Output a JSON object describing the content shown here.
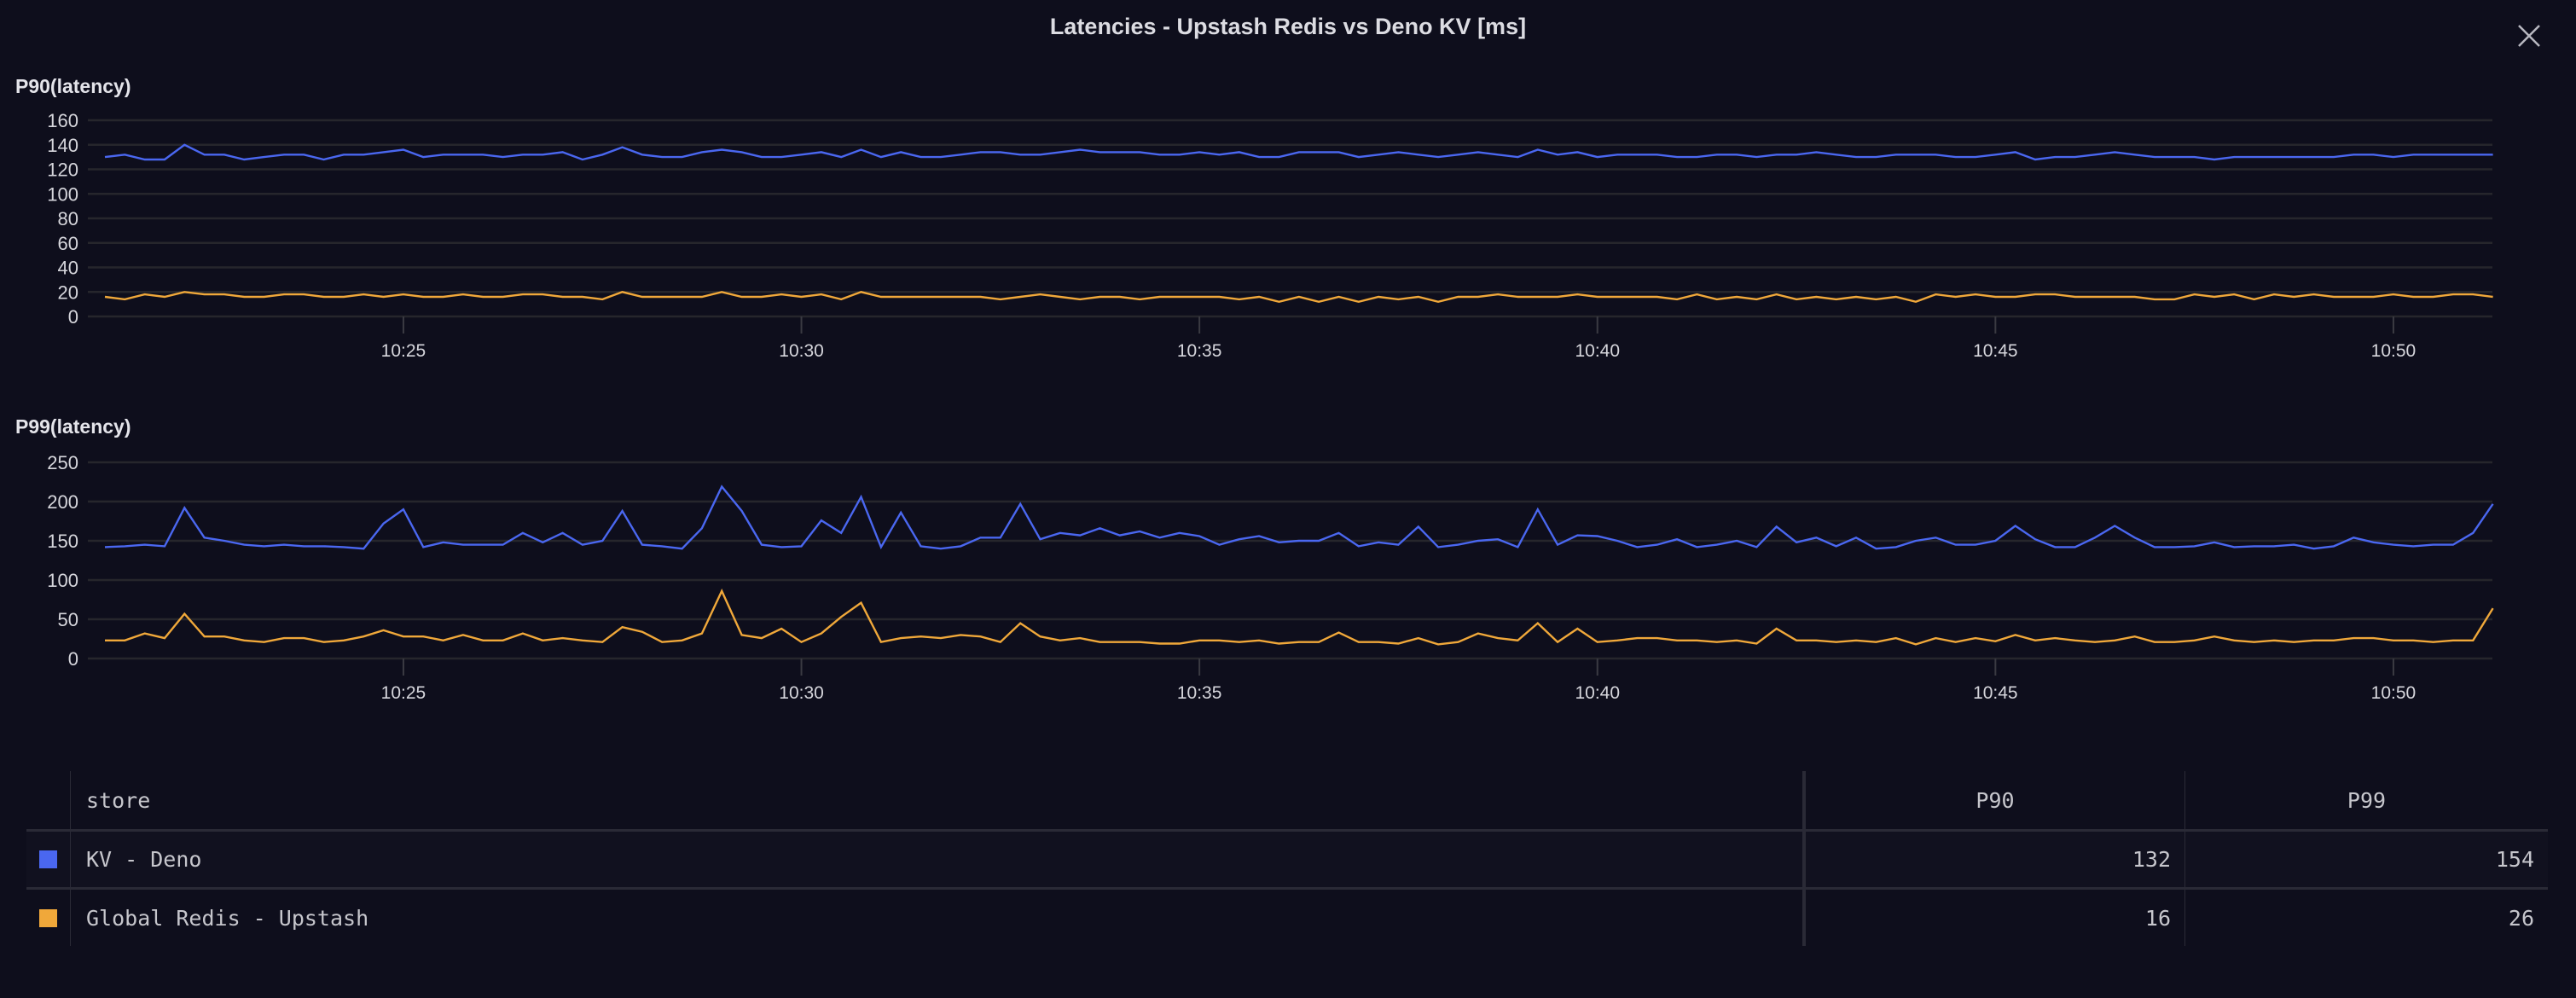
{
  "title": "Latencies - Upstash Redis vs Deno KV [ms]",
  "close_icon": "close-icon",
  "colors": {
    "kv_deno": "#4a67f0",
    "global_redis_upstash": "#f0a83a",
    "background": "#0e0e1c",
    "grid": "#26262c"
  },
  "chart_data": [
    {
      "type": "line",
      "title": "P90(latency)",
      "ylim": [
        0,
        160
      ],
      "yticks": [
        "0",
        "20",
        "40",
        "60",
        "80",
        "100",
        "120",
        "140",
        "160"
      ],
      "xticks": [
        "10:25",
        "10:30",
        "10:35",
        "10:40",
        "10:45",
        "10:50"
      ],
      "x_start": "10:21:15",
      "x_end": "10:51:15",
      "x_step_seconds": 15,
      "grid": true,
      "series": [
        {
          "name": "KV - Deno",
          "color": "#4a67f0",
          "values": [
            130,
            132,
            128,
            128,
            140,
            132,
            132,
            128,
            130,
            132,
            132,
            128,
            132,
            132,
            134,
            136,
            130,
            132,
            132,
            132,
            130,
            132,
            132,
            134,
            128,
            132,
            138,
            132,
            130,
            130,
            134,
            136,
            134,
            130,
            130,
            132,
            134,
            130,
            136,
            130,
            134,
            130,
            130,
            132,
            134,
            134,
            132,
            132,
            134,
            136,
            134,
            134,
            134,
            132,
            132,
            134,
            132,
            134,
            130,
            130,
            134,
            134,
            134,
            130,
            132,
            134,
            132,
            130,
            132,
            134,
            132,
            130,
            136,
            132,
            134,
            130,
            132,
            132,
            132,
            130,
            130,
            132,
            132,
            130,
            132,
            132,
            134,
            132,
            130,
            130,
            132,
            132,
            132,
            130,
            130,
            132,
            134,
            128,
            130,
            130,
            132,
            134,
            132,
            130,
            130,
            130,
            128,
            130,
            130,
            130,
            130,
            130,
            130,
            132,
            132,
            130,
            132,
            132,
            132,
            132,
            132
          ]
        },
        {
          "name": "Global Redis - Upstash",
          "color": "#f0a83a",
          "values": [
            16,
            14,
            18,
            16,
            20,
            18,
            18,
            16,
            16,
            18,
            18,
            16,
            16,
            18,
            16,
            18,
            16,
            16,
            18,
            16,
            16,
            18,
            18,
            16,
            16,
            14,
            20,
            16,
            16,
            16,
            16,
            20,
            16,
            16,
            18,
            16,
            18,
            14,
            20,
            16,
            16,
            16,
            16,
            16,
            16,
            14,
            16,
            18,
            16,
            14,
            16,
            16,
            14,
            16,
            16,
            16,
            16,
            14,
            16,
            12,
            16,
            12,
            16,
            12,
            16,
            14,
            16,
            12,
            16,
            16,
            18,
            16,
            16,
            16,
            18,
            16,
            16,
            16,
            16,
            14,
            18,
            14,
            16,
            14,
            18,
            14,
            16,
            14,
            16,
            14,
            16,
            12,
            18,
            16,
            18,
            16,
            16,
            18,
            18,
            16,
            16,
            16,
            16,
            14,
            14,
            18,
            16,
            18,
            14,
            18,
            16,
            18,
            16,
            16,
            16,
            18,
            16,
            16,
            18,
            18,
            16
          ]
        }
      ]
    },
    {
      "type": "line",
      "title": "P99(latency)",
      "ylim": [
        0,
        250
      ],
      "yticks": [
        "0",
        "50",
        "100",
        "150",
        "200",
        "250"
      ],
      "xticks": [
        "10:25",
        "10:30",
        "10:35",
        "10:40",
        "10:45",
        "10:50"
      ],
      "x_start": "10:21:15",
      "x_end": "10:51:15",
      "x_step_seconds": 15,
      "grid": true,
      "series": [
        {
          "name": "KV - Deno",
          "color": "#4a67f0",
          "values": [
            142,
            143,
            145,
            143,
            192,
            154,
            150,
            145,
            143,
            145,
            143,
            143,
            142,
            140,
            172,
            190,
            142,
            148,
            145,
            145,
            145,
            160,
            148,
            160,
            145,
            150,
            188,
            145,
            143,
            140,
            166,
            219,
            188,
            145,
            142,
            143,
            176,
            160,
            206,
            142,
            186,
            143,
            140,
            143,
            154,
            154,
            197,
            152,
            160,
            157,
            166,
            157,
            162,
            154,
            160,
            156,
            145,
            152,
            156,
            148,
            150,
            150,
            160,
            143,
            148,
            145,
            168,
            142,
            145,
            150,
            152,
            142,
            190,
            145,
            157,
            156,
            150,
            142,
            145,
            152,
            142,
            145,
            150,
            142,
            168,
            148,
            154,
            143,
            154,
            140,
            142,
            150,
            154,
            145,
            145,
            150,
            169,
            152,
            142,
            142,
            154,
            169,
            154,
            142,
            142,
            143,
            148,
            142,
            143,
            143,
            145,
            140,
            143,
            154,
            148,
            145,
            143,
            145,
            145,
            160,
            197
          ]
        },
        {
          "name": "Global Redis - Upstash",
          "color": "#f0a83a",
          "values": [
            23,
            23,
            32,
            26,
            57,
            28,
            28,
            23,
            21,
            26,
            26,
            21,
            23,
            28,
            36,
            28,
            28,
            23,
            30,
            23,
            23,
            32,
            23,
            26,
            23,
            21,
            40,
            34,
            21,
            23,
            32,
            86,
            30,
            26,
            38,
            21,
            32,
            53,
            71,
            21,
            26,
            28,
            26,
            30,
            28,
            21,
            45,
            28,
            23,
            26,
            21,
            21,
            21,
            19,
            19,
            23,
            23,
            21,
            23,
            19,
            21,
            21,
            33,
            21,
            21,
            19,
            26,
            18,
            21,
            32,
            26,
            23,
            45,
            21,
            38,
            21,
            23,
            26,
            26,
            23,
            23,
            21,
            23,
            19,
            38,
            23,
            23,
            21,
            23,
            21,
            26,
            18,
            26,
            21,
            26,
            22,
            30,
            23,
            26,
            23,
            21,
            23,
            28,
            21,
            21,
            23,
            28,
            23,
            21,
            23,
            21,
            23,
            23,
            26,
            26,
            23,
            23,
            21,
            23,
            23,
            64
          ]
        }
      ]
    }
  ],
  "legend": {
    "headers": {
      "store": "store",
      "p90": "P90",
      "p99": "P99"
    },
    "rows": [
      {
        "store": "KV - Deno",
        "color": "#4a67f0",
        "p90": "132",
        "p99": "154"
      },
      {
        "store": "Global Redis - Upstash",
        "color": "#f0a83a",
        "p90": "16",
        "p99": "26"
      }
    ]
  }
}
